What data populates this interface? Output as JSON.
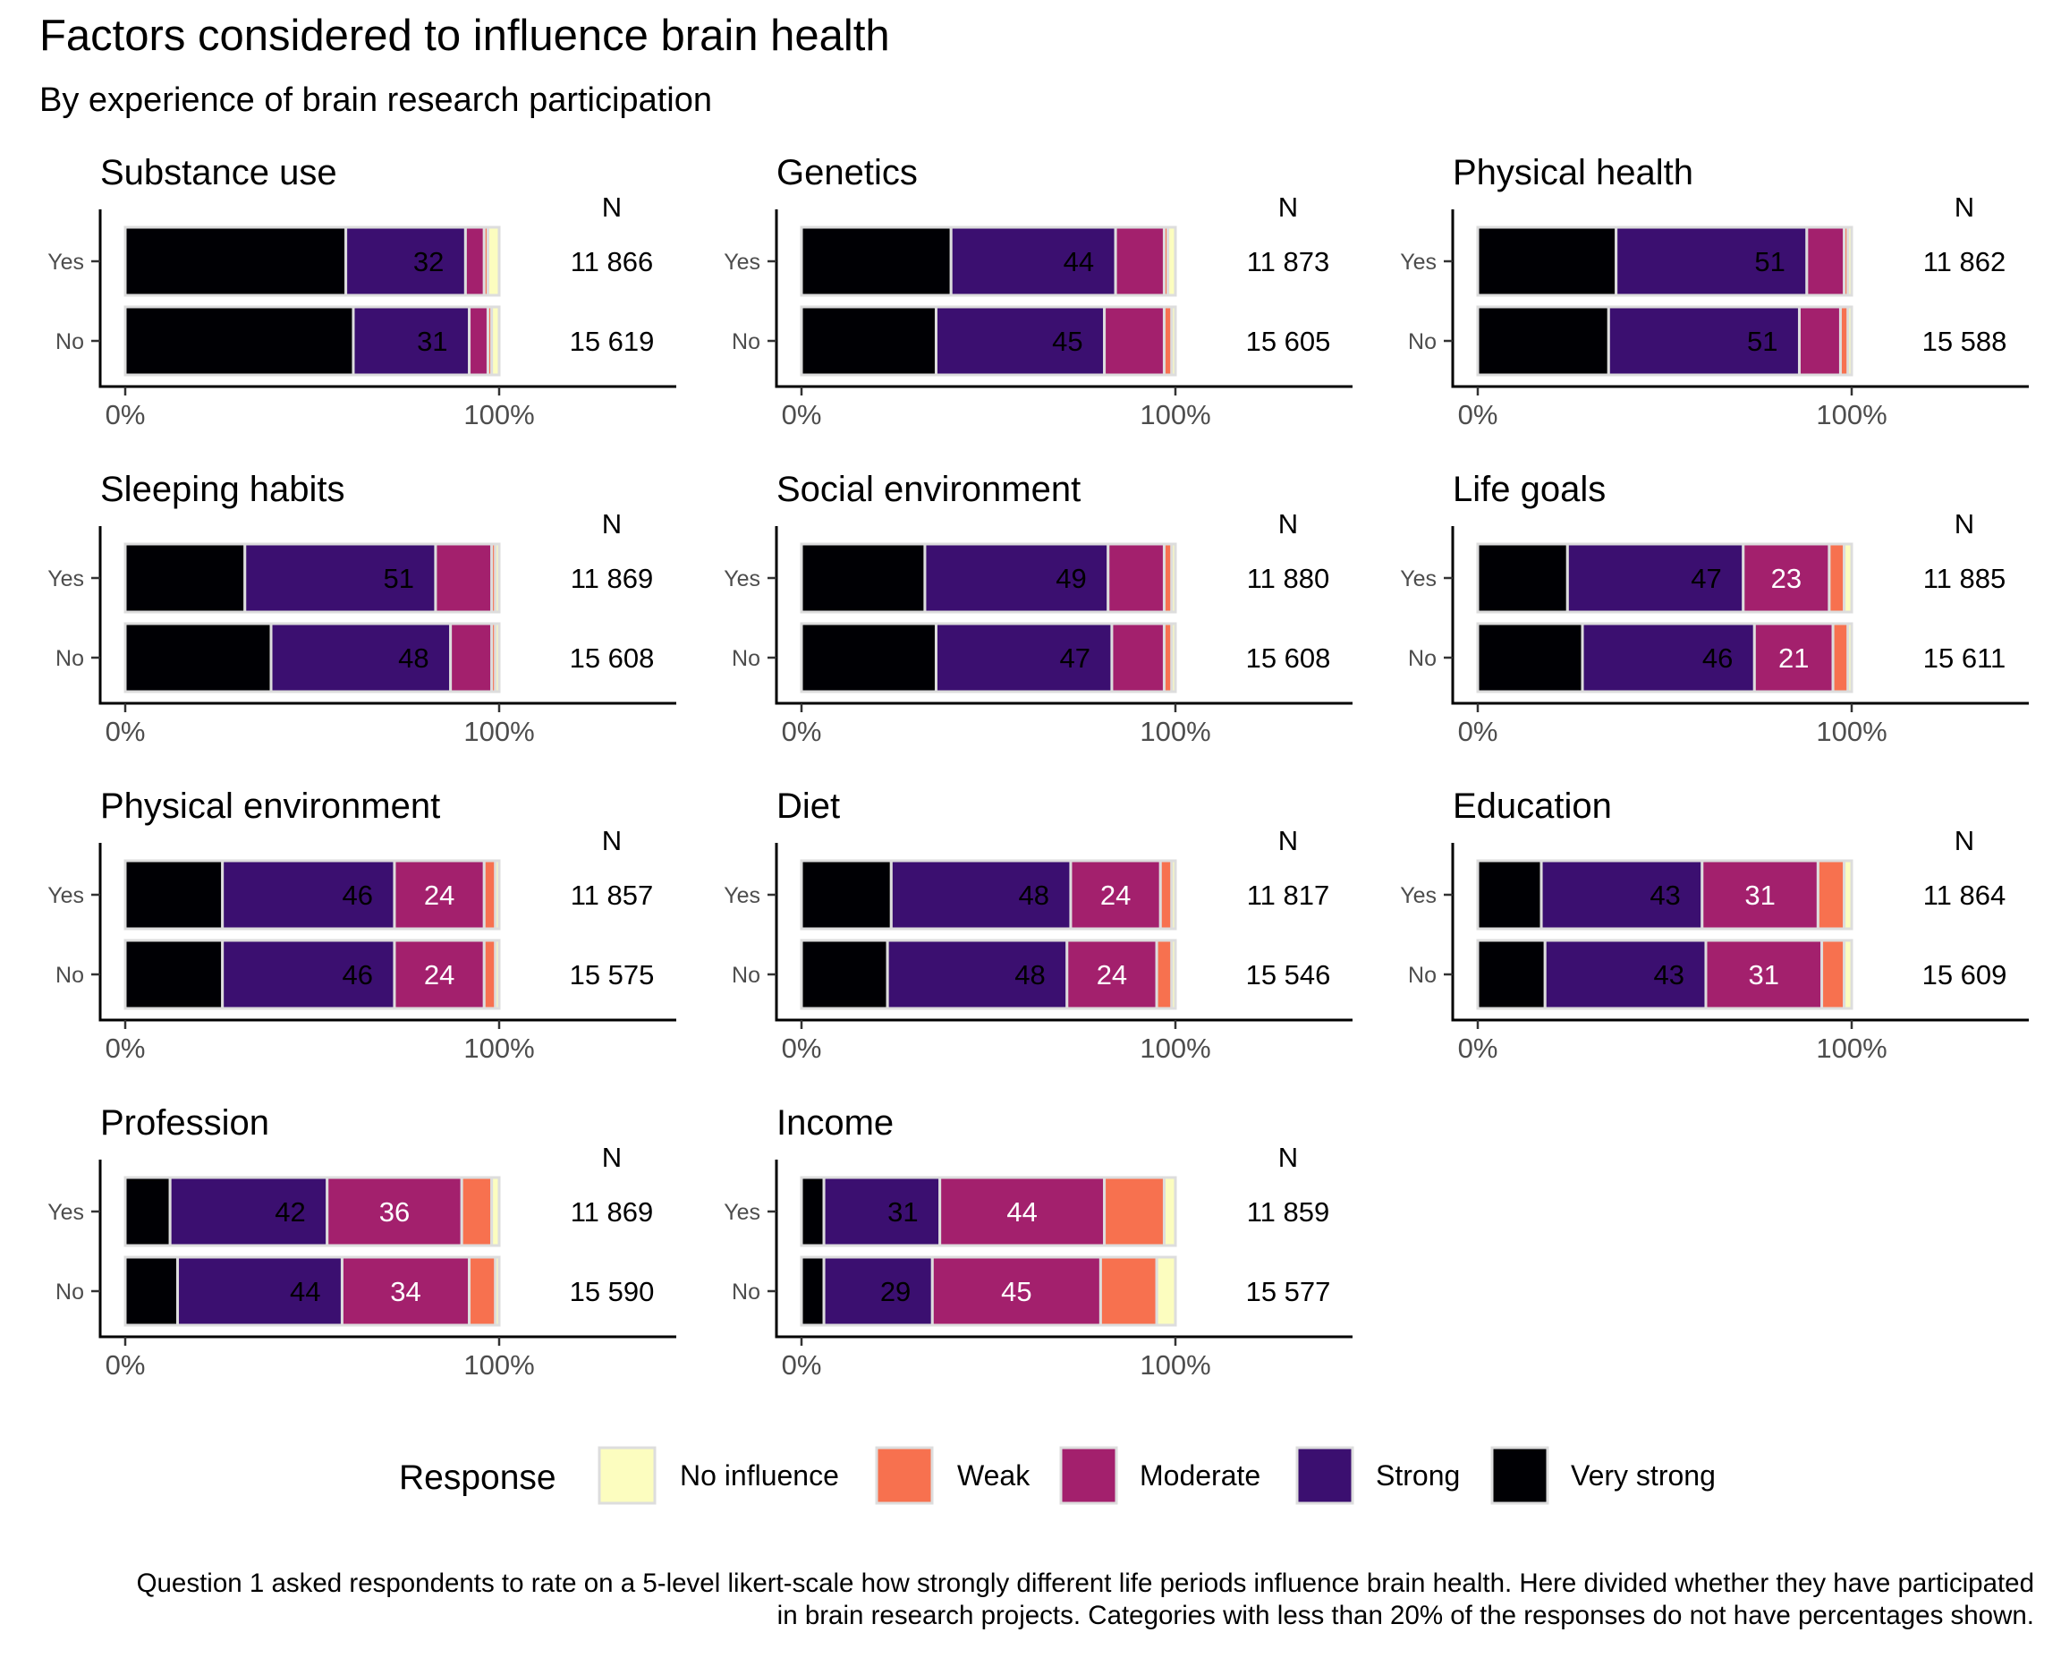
{
  "chart_data": {
    "type": "bar",
    "stacked": "percent",
    "orientation": "horizontal",
    "title": "Factors considered to influence brain health",
    "subtitle": "By experience of brain research participation",
    "n_header": "N",
    "groups": [
      "Yes",
      "No"
    ],
    "x_ticks": [
      "0%",
      "100%"
    ],
    "xlim": [
      0,
      100
    ],
    "legend": {
      "title": "Response",
      "position": "bottom",
      "entries": [
        "No influence",
        "Weak",
        "Moderate",
        "Strong",
        "Very strong"
      ]
    },
    "colors": {
      "Very strong": "#000004",
      "Strong": "#3b0f70",
      "Moderate": "#a3206d",
      "Weak": "#f7714f",
      "No influence": "#fcfdbf"
    },
    "categories_order": [
      "Very strong",
      "Strong",
      "Moderate",
      "Weak",
      "No influence"
    ],
    "label_threshold_pct": 20,
    "panels": [
      {
        "title": "Substance use",
        "rows": [
          {
            "group": "Yes",
            "n": "11 866",
            "values": [
              59,
              32,
              5,
              1,
              3
            ]
          },
          {
            "group": "No",
            "n": "15 619",
            "values": [
              61,
              31,
              5,
              1,
              2
            ]
          }
        ]
      },
      {
        "title": "Genetics",
        "rows": [
          {
            "group": "Yes",
            "n": "11 873",
            "values": [
              40,
              44,
              13,
              1,
              2
            ]
          },
          {
            "group": "No",
            "n": "15 605",
            "values": [
              36,
              45,
              16,
              2,
              1
            ]
          }
        ]
      },
      {
        "title": "Physical health",
        "rows": [
          {
            "group": "Yes",
            "n": "11 862",
            "values": [
              37,
              51,
              10,
              1,
              1
            ]
          },
          {
            "group": "No",
            "n": "15 588",
            "values": [
              35,
              51,
              11,
              2,
              1
            ]
          }
        ]
      },
      {
        "title": "Sleeping habits",
        "rows": [
          {
            "group": "Yes",
            "n": "11 869",
            "values": [
              32,
              51,
              15,
              1,
              1
            ]
          },
          {
            "group": "No",
            "n": "15 608",
            "values": [
              39,
              48,
              11,
              1,
              1
            ]
          }
        ]
      },
      {
        "title": "Social environment",
        "rows": [
          {
            "group": "Yes",
            "n": "11 880",
            "values": [
              33,
              49,
              15,
              2,
              1
            ]
          },
          {
            "group": "No",
            "n": "15 608",
            "values": [
              36,
              47,
              14,
              2,
              1
            ]
          }
        ]
      },
      {
        "title": "Life goals",
        "rows": [
          {
            "group": "Yes",
            "n": "11 885",
            "values": [
              24,
              47,
              23,
              4,
              2
            ]
          },
          {
            "group": "No",
            "n": "15 611",
            "values": [
              28,
              46,
              21,
              4,
              1
            ]
          }
        ]
      },
      {
        "title": "Physical environment",
        "rows": [
          {
            "group": "Yes",
            "n": "11 857",
            "values": [
              26,
              46,
              24,
              3,
              1
            ]
          },
          {
            "group": "No",
            "n": "15 575",
            "values": [
              26,
              46,
              24,
              3,
              1
            ]
          }
        ]
      },
      {
        "title": "Diet",
        "rows": [
          {
            "group": "Yes",
            "n": "11 817",
            "values": [
              24,
              48,
              24,
              3,
              1
            ]
          },
          {
            "group": "No",
            "n": "15 546",
            "values": [
              23,
              48,
              24,
              4,
              1
            ]
          }
        ]
      },
      {
        "title": "Education",
        "rows": [
          {
            "group": "Yes",
            "n": "11 864",
            "values": [
              17,
              43,
              31,
              7,
              2
            ]
          },
          {
            "group": "No",
            "n": "15 609",
            "values": [
              18,
              43,
              31,
              6,
              2
            ]
          }
        ]
      },
      {
        "title": "Profession",
        "rows": [
          {
            "group": "Yes",
            "n": "11 869",
            "values": [
              12,
              42,
              36,
              8,
              2
            ]
          },
          {
            "group": "No",
            "n": "15 590",
            "values": [
              14,
              44,
              34,
              7,
              1
            ]
          }
        ]
      },
      {
        "title": "Income",
        "rows": [
          {
            "group": "Yes",
            "n": "11 859",
            "values": [
              6,
              31,
              44,
              16,
              3
            ]
          },
          {
            "group": "No",
            "n": "15 577",
            "values": [
              6,
              29,
              45,
              15,
              5
            ]
          }
        ]
      }
    ]
  },
  "caption": "Question 1 asked respondents to rate on a 5-level likert-scale how strongly different life periods influence brain health. Here divided whether they have participated in brain research projects. Categories with less than 20% of the responses do not have percentages shown."
}
